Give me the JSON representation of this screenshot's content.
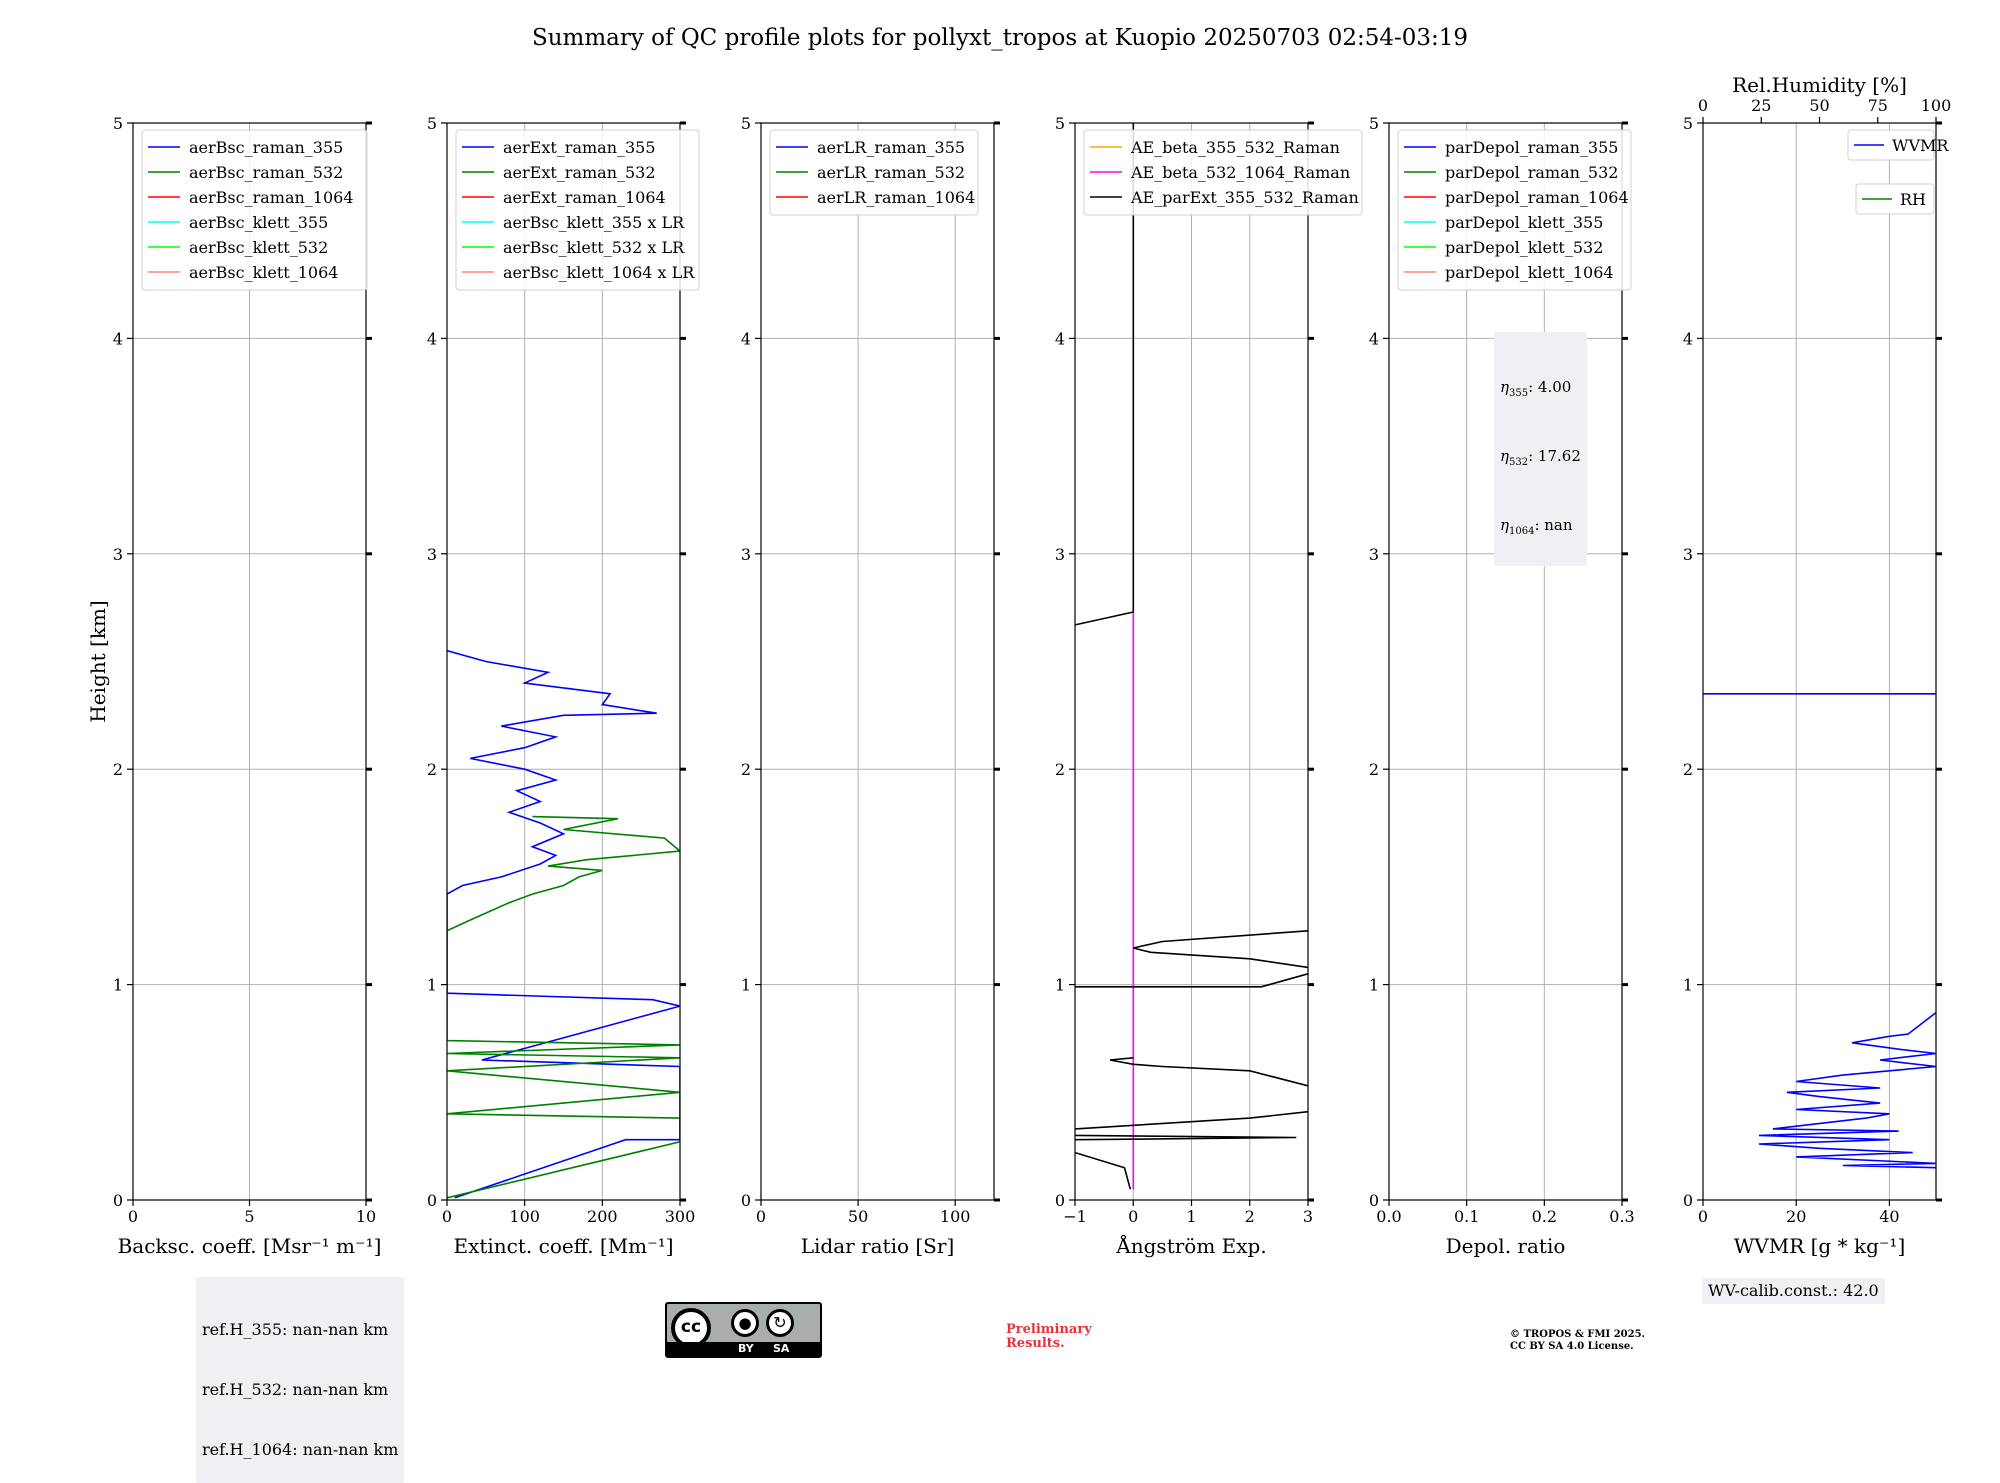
{
  "figure": {
    "title": "Summary of QC profile plots for pollyxt_tropos at Kuopio 20250703 02:54-03:19"
  },
  "chart_data": [
    {
      "type": "line",
      "ylabel": "Height [km]",
      "xlabel": "Backsc. coeff. [Msr⁻¹ m⁻¹]",
      "xlim": [
        0,
        10
      ],
      "ylim": [
        0,
        5
      ],
      "xticks": [
        0,
        5,
        10
      ],
      "yticks": [
        0,
        1,
        2,
        3,
        4,
        5
      ],
      "grid": true,
      "legend_location": "upper left",
      "legend": [
        {
          "name": "aerBsc_raman_355",
          "color": "#0000ff"
        },
        {
          "name": "aerBsc_raman_532",
          "color": "#008000"
        },
        {
          "name": "aerBsc_raman_1064",
          "color": "#ff0000"
        },
        {
          "name": "aerBsc_klett_355",
          "color": "#00ffff"
        },
        {
          "name": "aerBsc_klett_532",
          "color": "#00ff00"
        },
        {
          "name": "aerBsc_klett_1064",
          "color": "#ff8080"
        }
      ],
      "series": []
    },
    {
      "type": "line",
      "xlabel": "Extinct. coeff. [Mm⁻¹]",
      "xlim": [
        0,
        300
      ],
      "ylim": [
        0,
        5
      ],
      "xticks": [
        0,
        100,
        200,
        300
      ],
      "yticks": [
        0,
        1,
        2,
        3,
        4,
        5
      ],
      "grid": true,
      "legend_location": "upper left",
      "legend": [
        {
          "name": "aerExt_raman_355",
          "color": "#0000ff"
        },
        {
          "name": "aerExt_raman_532",
          "color": "#008000"
        },
        {
          "name": "aerExt_raman_1064",
          "color": "#ff0000"
        },
        {
          "name": "aerBsc_klett_355 x LR",
          "color": "#00ffff"
        },
        {
          "name": "aerBsc_klett_532 x LR",
          "color": "#00ff00"
        },
        {
          "name": "aerBsc_klett_1064 x LR",
          "color": "#ff8080"
        }
      ],
      "series": [
        {
          "color": "#0000ff",
          "points": [
            [
              10,
              0.01
            ],
            [
              230,
              0.28
            ],
            [
              300,
              0.28
            ],
            [
              300,
              0.62
            ],
            [
              45,
              0.65
            ],
            [
              300,
              0.9
            ],
            [
              265,
              0.93
            ],
            [
              0,
              0.96
            ],
            [
              0,
              1.42
            ],
            [
              20,
              1.46
            ],
            [
              70,
              1.5
            ],
            [
              120,
              1.56
            ],
            [
              140,
              1.6
            ],
            [
              110,
              1.64
            ],
            [
              150,
              1.7
            ],
            [
              120,
              1.75
            ],
            [
              80,
              1.8
            ],
            [
              120,
              1.85
            ],
            [
              90,
              1.9
            ],
            [
              140,
              1.95
            ],
            [
              100,
              2.0
            ],
            [
              30,
              2.05
            ],
            [
              100,
              2.1
            ],
            [
              140,
              2.15
            ],
            [
              70,
              2.2
            ],
            [
              150,
              2.25
            ],
            [
              270,
              2.26
            ],
            [
              200,
              2.3
            ],
            [
              210,
              2.35
            ],
            [
              100,
              2.4
            ],
            [
              130,
              2.45
            ],
            [
              50,
              2.5
            ],
            [
              0,
              2.55
            ]
          ]
        },
        {
          "color": "#008000",
          "points": [
            [
              0,
              0.01
            ],
            [
              300,
              0.27
            ],
            [
              300,
              0.38
            ],
            [
              0,
              0.4
            ],
            [
              300,
              0.5
            ],
            [
              0,
              0.6
            ],
            [
              300,
              0.66
            ],
            [
              0,
              0.68
            ],
            [
              300,
              0.72
            ],
            [
              0,
              0.74
            ],
            [
              0,
              1.25
            ],
            [
              30,
              1.3
            ],
            [
              80,
              1.38
            ],
            [
              110,
              1.42
            ],
            [
              150,
              1.46
            ],
            [
              170,
              1.5
            ],
            [
              200,
              1.53
            ],
            [
              130,
              1.55
            ],
            [
              180,
              1.58
            ],
            [
              300,
              1.62
            ],
            [
              280,
              1.68
            ],
            [
              150,
              1.72
            ],
            [
              220,
              1.77
            ],
            [
              110,
              1.78
            ]
          ]
        }
      ]
    },
    {
      "type": "line",
      "xlabel": "Lidar ratio [Sr]",
      "xlim": [
        0,
        120
      ],
      "ylim": [
        0,
        5
      ],
      "xticks": [
        0,
        50,
        100
      ],
      "yticks": [
        0,
        1,
        2,
        3,
        4,
        5
      ],
      "grid": true,
      "legend_location": "upper left",
      "legend": [
        {
          "name": "aerLR_raman_355",
          "color": "#0000ff"
        },
        {
          "name": "aerLR_raman_532",
          "color": "#008000"
        },
        {
          "name": "aerLR_raman_1064",
          "color": "#ff0000"
        }
      ],
      "series": []
    },
    {
      "type": "line",
      "xlabel": "Ångström Exp.",
      "xlim": [
        -1,
        3
      ],
      "ylim": [
        0,
        5
      ],
      "xticks": [
        -1,
        0,
        1,
        2,
        3
      ],
      "yticks": [
        0,
        1,
        2,
        3,
        4,
        5
      ],
      "grid": true,
      "legend_location": "upper left",
      "legend": [
        {
          "name": "AE_beta_355_532_Raman",
          "color": "#ffa500"
        },
        {
          "name": "AE_beta_532_1064_Raman",
          "color": "#ff00ff"
        },
        {
          "name": "AE_parExt_355_532_Raman",
          "color": "#000000"
        }
      ],
      "series": [
        {
          "color": "#ff00ff",
          "points": [
            [
              0,
              0.05
            ],
            [
              0,
              2.73
            ]
          ]
        },
        {
          "color": "#000000",
          "points": [
            [
              -0.05,
              0.05
            ],
            [
              -0.15,
              0.15
            ],
            [
              -1,
              0.22
            ]
          ]
        },
        {
          "color": "#000000",
          "points": [
            [
              -1,
              0.28
            ],
            [
              2.8,
              0.29
            ],
            [
              -1,
              0.3
            ]
          ]
        },
        {
          "color": "#000000",
          "points": [
            [
              -1,
              0.33
            ],
            [
              2,
              0.38
            ],
            [
              3,
              0.41
            ]
          ]
        },
        {
          "color": "#000000",
          "points": [
            [
              3,
              0.53
            ],
            [
              2,
              0.6
            ],
            [
              0.5,
              0.62
            ],
            [
              0,
              0.63
            ],
            [
              -0.4,
              0.65
            ],
            [
              0,
              0.66
            ]
          ]
        },
        {
          "color": "#000000",
          "points": [
            [
              -1,
              0.99
            ],
            [
              2.2,
              0.99
            ],
            [
              2.6,
              1.02
            ],
            [
              3,
              1.05
            ]
          ]
        },
        {
          "color": "#000000",
          "points": [
            [
              3,
              1.08
            ],
            [
              2,
              1.12
            ],
            [
              0.3,
              1.15
            ],
            [
              0,
              1.17
            ],
            [
              0.5,
              1.2
            ],
            [
              3,
              1.25
            ]
          ]
        },
        {
          "color": "#000000",
          "points": [
            [
              -1,
              2.67
            ],
            [
              0,
              2.73
            ],
            [
              0,
              5
            ]
          ]
        }
      ]
    },
    {
      "type": "line",
      "xlabel": "Depol. ratio",
      "xlim": [
        0,
        0.3
      ],
      "ylim": [
        0,
        5
      ],
      "xticks": [
        0.0,
        0.1,
        0.2,
        0.3
      ],
      "yticks": [
        0,
        1,
        2,
        3,
        4,
        5
      ],
      "grid": true,
      "legend_location": "upper left",
      "legend": [
        {
          "name": "parDepol_raman_355",
          "color": "#0000ff"
        },
        {
          "name": "parDepol_raman_532",
          "color": "#008000"
        },
        {
          "name": "parDepol_raman_1064",
          "color": "#ff0000"
        },
        {
          "name": "parDepol_klett_355",
          "color": "#00ffff"
        },
        {
          "name": "parDepol_klett_532",
          "color": "#00ff00"
        },
        {
          "name": "parDepol_klett_1064",
          "color": "#ff8080"
        }
      ],
      "series": []
    },
    {
      "type": "line",
      "xlabel": "WVMR [g * kg⁻¹]",
      "x2label": "Rel.Humidity [%]",
      "xlim": [
        0,
        50
      ],
      "x2lim": [
        0,
        100
      ],
      "ylim": [
        0,
        5
      ],
      "xticks": [
        0,
        20,
        40
      ],
      "x2ticks": [
        0,
        25,
        50,
        75,
        100
      ],
      "yticks": [
        0,
        1,
        2,
        3,
        4,
        5
      ],
      "grid": true,
      "legend_location": "upper right",
      "legend": [
        {
          "name": "WVMR",
          "color": "#0000ff"
        },
        {
          "name": "RH",
          "color": "#008000"
        }
      ],
      "series": [
        {
          "color": "#0000ff",
          "points": [
            [
              0,
              2.35
            ],
            [
              50,
              2.35
            ]
          ]
        },
        {
          "color": "#0000ff",
          "points": [
            [
              50,
              0.15
            ],
            [
              30,
              0.16
            ],
            [
              50,
              0.17
            ],
            [
              20,
              0.2
            ],
            [
              45,
              0.22
            ],
            [
              25,
              0.24
            ],
            [
              12,
              0.26
            ],
            [
              40,
              0.28
            ],
            [
              12,
              0.3
            ],
            [
              42,
              0.32
            ],
            [
              15,
              0.33
            ],
            [
              35,
              0.38
            ],
            [
              40,
              0.4
            ],
            [
              20,
              0.42
            ],
            [
              38,
              0.45
            ],
            [
              25,
              0.48
            ],
            [
              18,
              0.5
            ],
            [
              38,
              0.52
            ],
            [
              20,
              0.55
            ],
            [
              30,
              0.58
            ],
            [
              40,
              0.6
            ],
            [
              50,
              0.62
            ],
            [
              38,
              0.65
            ],
            [
              50,
              0.68
            ],
            [
              42,
              0.7
            ],
            [
              32,
              0.73
            ],
            [
              40,
              0.76
            ],
            [
              44,
              0.77
            ],
            [
              50,
              0.87
            ]
          ]
        }
      ]
    }
  ],
  "annotations": {
    "ref_heights": [
      "ref.H_355: nan-nan km",
      "ref.H_532: nan-nan km",
      "ref.H_1064: nan-nan km"
    ],
    "eta": [
      {
        "base": "η",
        "sub": "355",
        "value": ": 4.00"
      },
      {
        "base": "η",
        "sub": "532",
        "value": ": 17.62"
      },
      {
        "base": "η",
        "sub": "1064",
        "value": ": nan"
      }
    ],
    "wv_calib": "WV-calib.const.: 42.0",
    "preliminary": "Preliminary\nResults.",
    "copyright": "© TROPOS & FMI 2025.\nCC BY SA 4.0 License."
  },
  "license_badge": {
    "cc": "cc",
    "by_icon": "person-icon",
    "sa_icon": "share-alike-icon",
    "by": "BY",
    "sa": "SA"
  }
}
